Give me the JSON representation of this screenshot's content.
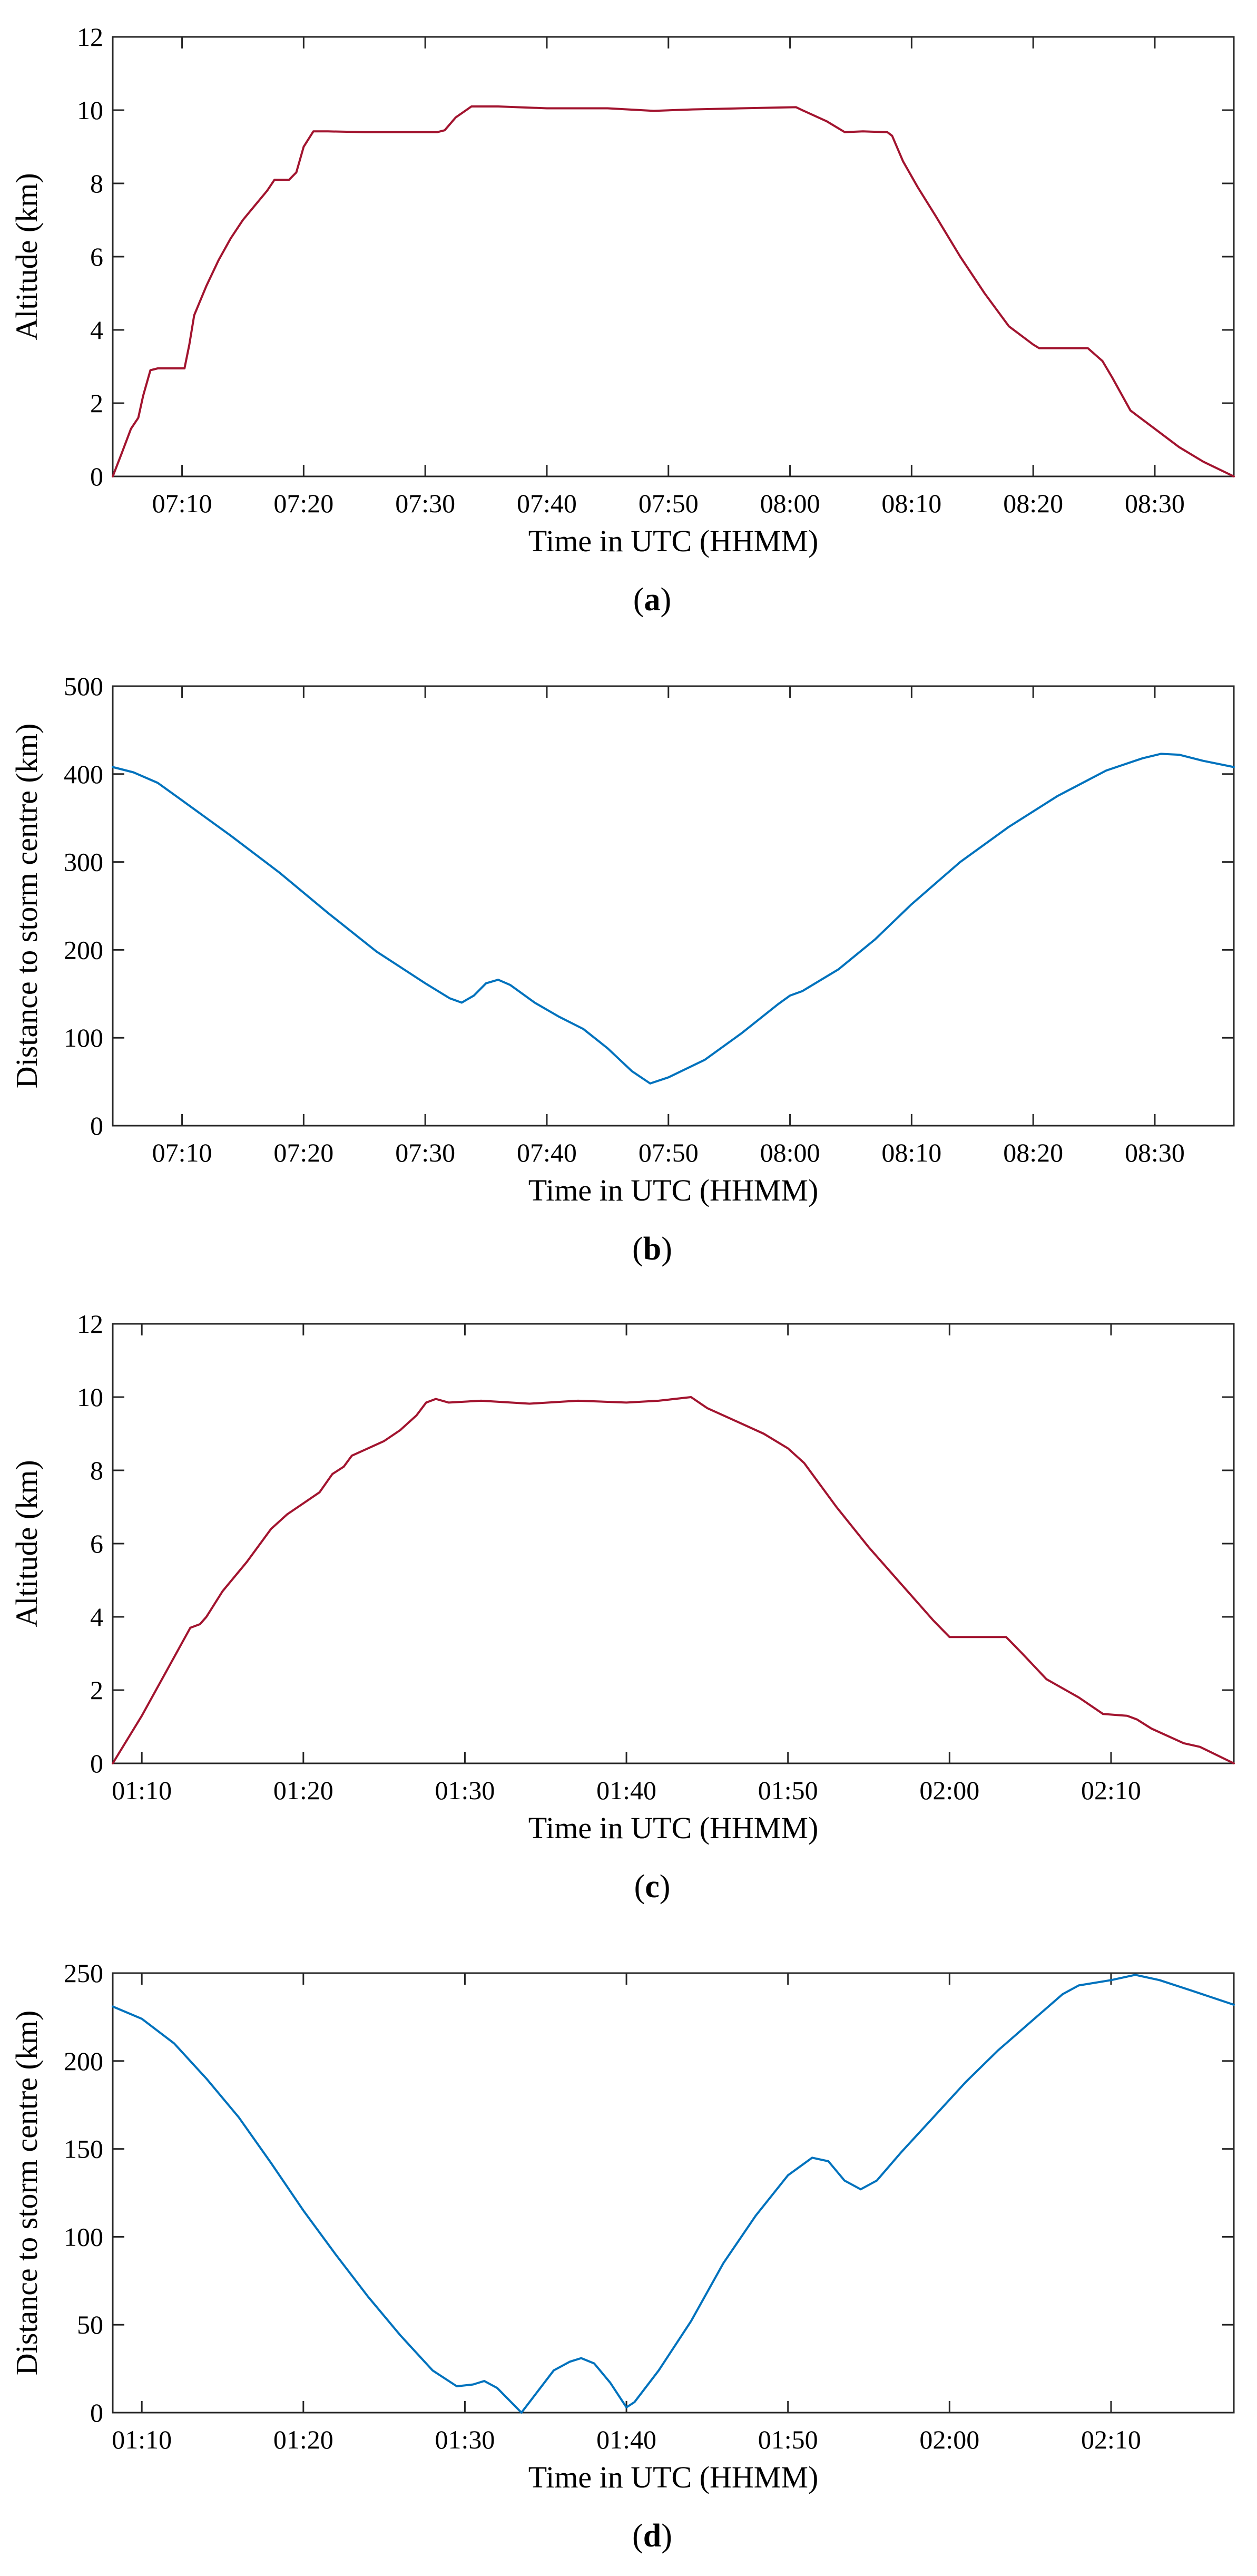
{
  "colors": {
    "altitude_line": "#a2142f",
    "distance_line": "#0072bd",
    "axis": "#262626"
  },
  "chart_data": [
    {
      "id": "a",
      "type": "line",
      "panel_label": "a",
      "xlabel": "Time in UTC (HHMM)",
      "ylabel": "Altitude (km)",
      "x_unit": "minutes since 07:00 UTC",
      "xlim": [
        4.3,
        96.5
      ],
      "ylim": [
        0,
        12
      ],
      "yticks": [
        0,
        2,
        4,
        6,
        8,
        10,
        12
      ],
      "xticks": [
        {
          "value": 10,
          "label": "07:10"
        },
        {
          "value": 20,
          "label": "07:20"
        },
        {
          "value": 30,
          "label": "07:30"
        },
        {
          "value": 40,
          "label": "07:40"
        },
        {
          "value": 50,
          "label": "07:50"
        },
        {
          "value": 60,
          "label": "08:00"
        },
        {
          "value": 70,
          "label": "08:10"
        },
        {
          "value": 80,
          "label": "08:20"
        },
        {
          "value": 90,
          "label": "08:30"
        }
      ],
      "series": [
        {
          "name": "Altitude",
          "color": "#a2142f",
          "points": [
            [
              4.3,
              0
            ],
            [
              5.0,
              0.6
            ],
            [
              5.8,
              1.3
            ],
            [
              6.4,
              1.6
            ],
            [
              6.8,
              2.2
            ],
            [
              7.4,
              2.9
            ],
            [
              8.0,
              2.95
            ],
            [
              9.5,
              2.95
            ],
            [
              10.2,
              2.95
            ],
            [
              10.6,
              3.6
            ],
            [
              11.0,
              4.4
            ],
            [
              12.0,
              5.2
            ],
            [
              13.0,
              5.9
            ],
            [
              14.0,
              6.5
            ],
            [
              15.0,
              7.0
            ],
            [
              16.0,
              7.4
            ],
            [
              17.0,
              7.8
            ],
            [
              17.6,
              8.1
            ],
            [
              18.8,
              8.1
            ],
            [
              19.4,
              8.3
            ],
            [
              20.0,
              9.0
            ],
            [
              20.8,
              9.42
            ],
            [
              22.0,
              9.42
            ],
            [
              25.0,
              9.4
            ],
            [
              28.0,
              9.4
            ],
            [
              31.0,
              9.4
            ],
            [
              31.6,
              9.45
            ],
            [
              32.5,
              9.8
            ],
            [
              33.8,
              10.1
            ],
            [
              36.0,
              10.1
            ],
            [
              40.0,
              10.05
            ],
            [
              45.0,
              10.05
            ],
            [
              48.8,
              9.98
            ],
            [
              52.0,
              10.02
            ],
            [
              56.0,
              10.05
            ],
            [
              60.5,
              10.08
            ],
            [
              61.0,
              10.0
            ],
            [
              63.0,
              9.7
            ],
            [
              64.5,
              9.4
            ],
            [
              66.0,
              9.42
            ],
            [
              68.0,
              9.4
            ],
            [
              68.4,
              9.3
            ],
            [
              69.3,
              8.6
            ],
            [
              70.5,
              7.9
            ],
            [
              72.0,
              7.1
            ],
            [
              74.0,
              6.0
            ],
            [
              76.0,
              5.0
            ],
            [
              78.0,
              4.1
            ],
            [
              80.0,
              3.6
            ],
            [
              80.5,
              3.5
            ],
            [
              84.5,
              3.5
            ],
            [
              85.7,
              3.15
            ],
            [
              86.5,
              2.7
            ],
            [
              88.0,
              1.8
            ],
            [
              90.0,
              1.3
            ],
            [
              92.0,
              0.8
            ],
            [
              94.0,
              0.4
            ],
            [
              96.5,
              0
            ]
          ]
        }
      ]
    },
    {
      "id": "b",
      "type": "line",
      "panel_label": "b",
      "xlabel": "Time in UTC (HHMM)",
      "ylabel": "Distance to storm centre (km)",
      "x_unit": "minutes since 07:00 UTC",
      "xlim": [
        4.3,
        96.5
      ],
      "ylim": [
        0,
        500
      ],
      "yticks": [
        0,
        100,
        200,
        300,
        400,
        500
      ],
      "xticks": [
        {
          "value": 10,
          "label": "07:10"
        },
        {
          "value": 20,
          "label": "07:20"
        },
        {
          "value": 30,
          "label": "07:30"
        },
        {
          "value": 40,
          "label": "07:40"
        },
        {
          "value": 50,
          "label": "07:50"
        },
        {
          "value": 60,
          "label": "08:00"
        },
        {
          "value": 70,
          "label": "08:10"
        },
        {
          "value": 80,
          "label": "08:20"
        },
        {
          "value": 90,
          "label": "08:30"
        }
      ],
      "series": [
        {
          "name": "Distance to storm centre",
          "color": "#0072bd",
          "points": [
            [
              4.3,
              408
            ],
            [
              6.0,
              402
            ],
            [
              8.0,
              390
            ],
            [
              10.0,
              370
            ],
            [
              14.0,
              330
            ],
            [
              18.0,
              288
            ],
            [
              22.0,
              242
            ],
            [
              26.0,
              198
            ],
            [
              30.0,
              162
            ],
            [
              32.0,
              145
            ],
            [
              33.0,
              140
            ],
            [
              34.0,
              148
            ],
            [
              35.0,
              162
            ],
            [
              36.0,
              166
            ],
            [
              37.0,
              160
            ],
            [
              39.0,
              140
            ],
            [
              41.0,
              124
            ],
            [
              43.0,
              110
            ],
            [
              45.0,
              88
            ],
            [
              47.0,
              62
            ],
            [
              48.5,
              48
            ],
            [
              50.0,
              55
            ],
            [
              53.0,
              75
            ],
            [
              56.0,
              105
            ],
            [
              59.0,
              138
            ],
            [
              60.0,
              148
            ],
            [
              61.0,
              153
            ],
            [
              64.0,
              178
            ],
            [
              67.0,
              212
            ],
            [
              70.0,
              252
            ],
            [
              74.0,
              300
            ],
            [
              78.0,
              340
            ],
            [
              82.0,
              375
            ],
            [
              86.0,
              404
            ],
            [
              89.0,
              418
            ],
            [
              90.5,
              423
            ],
            [
              92.0,
              422
            ],
            [
              94.0,
              415
            ],
            [
              96.5,
              408
            ]
          ]
        }
      ]
    },
    {
      "id": "c",
      "type": "line",
      "panel_label": "c",
      "xlabel": "Time in UTC (HHMM)",
      "ylabel": "Altitude (km)",
      "x_unit": "minutes since 01:00 UTC",
      "xlim": [
        8.2,
        77.6
      ],
      "ylim": [
        0,
        12
      ],
      "yticks": [
        0,
        2,
        4,
        6,
        8,
        10,
        12
      ],
      "xticks": [
        {
          "value": 10,
          "label": "01:10"
        },
        {
          "value": 20,
          "label": "01:20"
        },
        {
          "value": 30,
          "label": "01:30"
        },
        {
          "value": 40,
          "label": "01:40"
        },
        {
          "value": 50,
          "label": "01:50"
        },
        {
          "value": 60,
          "label": "02:00"
        },
        {
          "value": 70,
          "label": "02:10"
        }
      ],
      "series": [
        {
          "name": "Altitude",
          "color": "#a2142f",
          "points": [
            [
              8.2,
              0
            ],
            [
              10.0,
              1.3
            ],
            [
              11.5,
              2.5
            ],
            [
              13.0,
              3.7
            ],
            [
              13.6,
              3.8
            ],
            [
              14.0,
              4.0
            ],
            [
              15.0,
              4.7
            ],
            [
              16.5,
              5.5
            ],
            [
              18.0,
              6.4
            ],
            [
              19.0,
              6.8
            ],
            [
              20.0,
              7.1
            ],
            [
              21.0,
              7.4
            ],
            [
              21.8,
              7.9
            ],
            [
              22.5,
              8.1
            ],
            [
              23.0,
              8.4
            ],
            [
              24.0,
              8.6
            ],
            [
              25.0,
              8.8
            ],
            [
              26.0,
              9.1
            ],
            [
              27.0,
              9.5
            ],
            [
              27.6,
              9.85
            ],
            [
              28.2,
              9.95
            ],
            [
              29.0,
              9.85
            ],
            [
              31.0,
              9.9
            ],
            [
              34.0,
              9.82
            ],
            [
              37.0,
              9.9
            ],
            [
              40.0,
              9.85
            ],
            [
              42.0,
              9.9
            ],
            [
              44.0,
              10.0
            ],
            [
              45.0,
              9.7
            ],
            [
              46.5,
              9.4
            ],
            [
              48.5,
              9.0
            ],
            [
              50.0,
              8.6
            ],
            [
              51.0,
              8.2
            ],
            [
              53.0,
              7.0
            ],
            [
              55.0,
              5.9
            ],
            [
              57.0,
              4.9
            ],
            [
              59.0,
              3.9
            ],
            [
              60.0,
              3.45
            ],
            [
              63.5,
              3.45
            ],
            [
              64.5,
              3.0
            ],
            [
              66.0,
              2.3
            ],
            [
              68.0,
              1.8
            ],
            [
              69.5,
              1.35
            ],
            [
              71.0,
              1.3
            ],
            [
              71.6,
              1.2
            ],
            [
              72.5,
              0.95
            ],
            [
              74.5,
              0.55
            ],
            [
              75.5,
              0.45
            ],
            [
              77.6,
              0
            ]
          ]
        }
      ]
    },
    {
      "id": "d",
      "type": "line",
      "panel_label": "d",
      "xlabel": "Time in UTC (HHMM)",
      "ylabel": "Distance to storm centre (km)",
      "x_unit": "minutes since 01:00 UTC",
      "xlim": [
        8.2,
        77.6
      ],
      "ylim": [
        0,
        250
      ],
      "yticks": [
        0,
        50,
        100,
        150,
        200,
        250
      ],
      "xticks": [
        {
          "value": 10,
          "label": "01:10"
        },
        {
          "value": 20,
          "label": "01:20"
        },
        {
          "value": 30,
          "label": "01:30"
        },
        {
          "value": 40,
          "label": "01:40"
        },
        {
          "value": 50,
          "label": "01:50"
        },
        {
          "value": 60,
          "label": "02:00"
        },
        {
          "value": 70,
          "label": "02:10"
        }
      ],
      "series": [
        {
          "name": "Distance to storm centre",
          "color": "#0072bd",
          "points": [
            [
              8.2,
              231
            ],
            [
              10.0,
              224
            ],
            [
              12.0,
              210
            ],
            [
              14.0,
              190
            ],
            [
              16.0,
              168
            ],
            [
              18.0,
              142
            ],
            [
              20.0,
              115
            ],
            [
              22.0,
              90
            ],
            [
              24.0,
              66
            ],
            [
              26.0,
              44
            ],
            [
              28.0,
              24
            ],
            [
              29.5,
              15
            ],
            [
              30.5,
              16
            ],
            [
              31.2,
              18
            ],
            [
              32.0,
              14
            ],
            [
              33.5,
              0
            ],
            [
              34.5,
              12
            ],
            [
              35.5,
              24
            ],
            [
              36.5,
              29
            ],
            [
              37.2,
              31
            ],
            [
              38.0,
              28
            ],
            [
              39.0,
              17
            ],
            [
              40.0,
              3
            ],
            [
              40.5,
              6
            ],
            [
              42.0,
              24
            ],
            [
              44.0,
              52
            ],
            [
              46.0,
              85
            ],
            [
              48.0,
              112
            ],
            [
              50.0,
              135
            ],
            [
              51.5,
              145
            ],
            [
              52.5,
              143
            ],
            [
              53.5,
              132
            ],
            [
              54.5,
              127
            ],
            [
              55.5,
              132
            ],
            [
              57.0,
              148
            ],
            [
              59.0,
              168
            ],
            [
              61.0,
              188
            ],
            [
              63.0,
              206
            ],
            [
              65.0,
              222
            ],
            [
              67.0,
              238
            ],
            [
              68.0,
              243
            ],
            [
              70.0,
              246
            ],
            [
              71.5,
              249
            ],
            [
              73.0,
              246
            ],
            [
              75.0,
              240
            ],
            [
              77.6,
              232
            ]
          ]
        }
      ]
    }
  ]
}
